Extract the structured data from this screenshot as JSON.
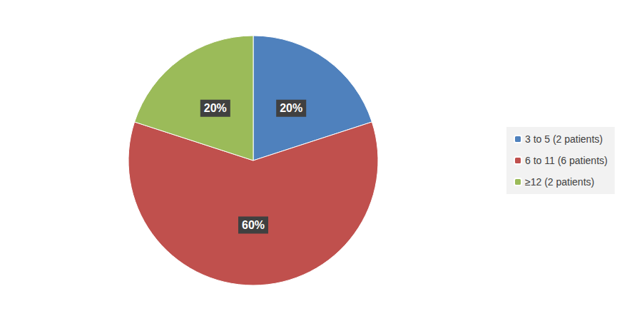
{
  "chart_data": {
    "type": "pie",
    "categories": [
      "3 to 5 (2 patients)",
      "6 to 11 (6 patients)",
      "≥12 (2 patients)"
    ],
    "values": [
      20,
      60,
      20
    ],
    "value_labels": [
      "20%",
      "60%",
      "20%"
    ],
    "colors": [
      "#4f81bd",
      "#c0504d",
      "#9bbb59"
    ],
    "data_labels": true,
    "legend": "right"
  }
}
